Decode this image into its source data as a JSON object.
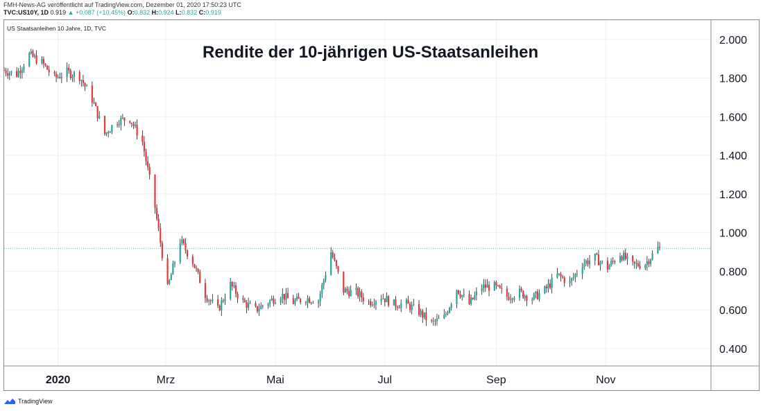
{
  "header": {
    "published": "FMH-News-AG veröffentlicht auf TradingView.com, Dezember 01, 2020 17:50:23 UTC",
    "symbol": "TVC:US10Y, 1D",
    "last": "0.919",
    "change": "▲ +0.087 (+10.45%)",
    "o_label": "O:",
    "o_value": "0.832",
    "h_label": "H:",
    "h_value": "0.924",
    "l_label": "L:",
    "l_value": "0.832",
    "c_label": "C:",
    "c_value": "0.919"
  },
  "subtitle": "US Staatsanleihen 10 Jahre, 1D, TVC",
  "footer": {
    "brand": "TradingView",
    "logo_icon": "tradingview-logo-icon"
  },
  "colors": {
    "up": "#26a69a",
    "down": "#e0393e",
    "wick": "#131722",
    "grid": "#eceff2",
    "last_line": "#26a69a"
  },
  "chart_data": {
    "type": "candlestick",
    "title": "Rendite der 10-jährigen US-Staatsanleihen",
    "x_tick_labels": [
      "2020",
      "Mrz",
      "Mai",
      "Jul",
      "Sep",
      "Nov"
    ],
    "y_tick_labels": [
      "2.000",
      "1.800",
      "1.600",
      "1.400",
      "1.200",
      "1.000",
      "0.800",
      "0.600",
      "0.400"
    ],
    "ylim": [
      0.31,
      2.1
    ],
    "grid": true,
    "last_price_line": 0.919,
    "weekly_closes": [
      [
        "2019-12-02",
        1.84
      ],
      [
        "2019-12-09",
        1.82
      ],
      [
        "2019-12-16",
        1.92
      ],
      [
        "2019-12-23",
        1.88
      ],
      [
        "2019-12-30",
        1.8
      ],
      [
        "2020-01-06",
        1.83
      ],
      [
        "2020-01-13",
        1.81
      ],
      [
        "2020-01-20",
        1.69
      ],
      [
        "2020-01-27",
        1.51
      ],
      [
        "2020-02-03",
        1.58
      ],
      [
        "2020-02-10",
        1.59
      ],
      [
        "2020-02-17",
        1.47
      ],
      [
        "2020-02-24",
        1.13
      ],
      [
        "2020-03-02",
        0.71
      ],
      [
        "2020-03-09",
        0.96
      ],
      [
        "2020-03-16",
        0.85
      ],
      [
        "2020-03-23",
        0.68
      ],
      [
        "2020-03-30",
        0.6
      ],
      [
        "2020-04-06",
        0.73
      ],
      [
        "2020-04-13",
        0.64
      ],
      [
        "2020-04-20",
        0.6
      ],
      [
        "2020-04-27",
        0.64
      ],
      [
        "2020-05-04",
        0.68
      ],
      [
        "2020-05-11",
        0.64
      ],
      [
        "2020-05-18",
        0.66
      ],
      [
        "2020-05-25",
        0.65
      ],
      [
        "2020-06-01",
        0.9
      ],
      [
        "2020-06-08",
        0.7
      ],
      [
        "2020-06-15",
        0.69
      ],
      [
        "2020-06-22",
        0.64
      ],
      [
        "2020-06-29",
        0.67
      ],
      [
        "2020-07-06",
        0.63
      ],
      [
        "2020-07-13",
        0.63
      ],
      [
        "2020-07-20",
        0.59
      ],
      [
        "2020-07-27",
        0.53
      ],
      [
        "2020-08-03",
        0.56
      ],
      [
        "2020-08-10",
        0.71
      ],
      [
        "2020-08-17",
        0.63
      ],
      [
        "2020-08-24",
        0.72
      ],
      [
        "2020-08-31",
        0.72
      ],
      [
        "2020-09-07",
        0.67
      ],
      [
        "2020-09-14",
        0.69
      ],
      [
        "2020-09-21",
        0.66
      ],
      [
        "2020-09-28",
        0.7
      ],
      [
        "2020-10-05",
        0.78
      ],
      [
        "2020-10-12",
        0.74
      ],
      [
        "2020-10-19",
        0.84
      ],
      [
        "2020-10-26",
        0.87
      ],
      [
        "2020-11-02",
        0.82
      ],
      [
        "2020-11-09",
        0.89
      ],
      [
        "2020-11-16",
        0.83
      ],
      [
        "2020-11-23",
        0.84
      ],
      [
        "2020-11-30",
        0.919
      ]
    ]
  }
}
